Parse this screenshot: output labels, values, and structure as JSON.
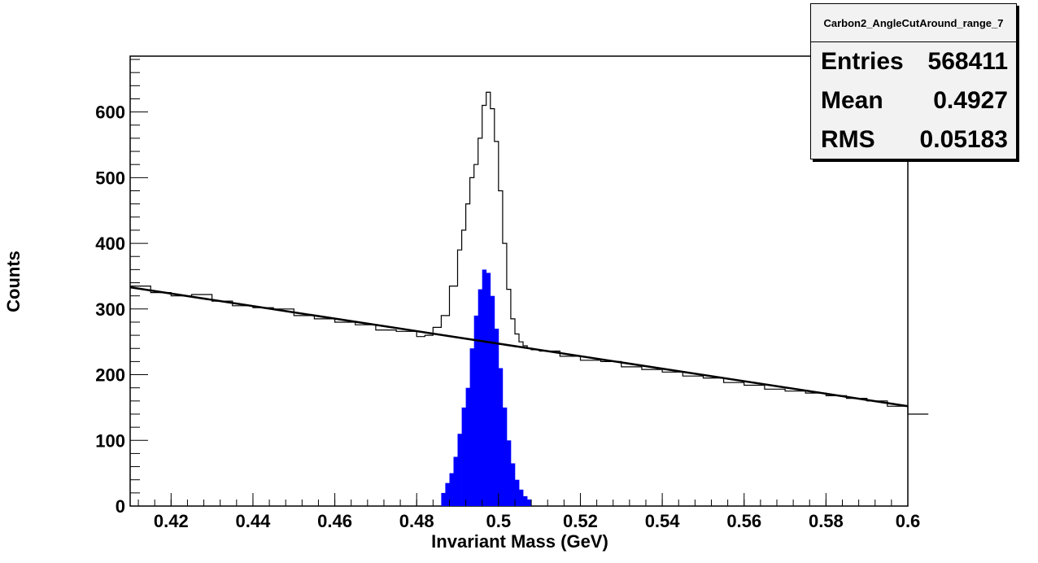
{
  "chart_data": {
    "type": "line",
    "xlabel": "Invariant Mass (GeV)",
    "ylabel": "Counts",
    "xlim": [
      0.41,
      0.6
    ],
    "ylim": [
      0,
      685
    ],
    "x_ticks": [
      "0.42",
      "0.44",
      "0.46",
      "0.48",
      "0.5",
      "0.52",
      "0.54",
      "0.56",
      "0.58",
      "0.6"
    ],
    "y_ticks": [
      "0",
      "100",
      "200",
      "300",
      "400",
      "500",
      "600"
    ],
    "grid": false,
    "legend": "none",
    "series": [
      {
        "kind": "histogram",
        "color": "#000000",
        "x": [
          0.41,
          0.415,
          0.42,
          0.425,
          0.43,
          0.435,
          0.44,
          0.445,
          0.45,
          0.455,
          0.46,
          0.465,
          0.47,
          0.475,
          0.48,
          0.482,
          0.484,
          0.486,
          0.488,
          0.49,
          0.491,
          0.492,
          0.493,
          0.494,
          0.495,
          0.496,
          0.497,
          0.498,
          0.499,
          0.5,
          0.501,
          0.502,
          0.503,
          0.504,
          0.505,
          0.506,
          0.507,
          0.508,
          0.51,
          0.515,
          0.52,
          0.525,
          0.53,
          0.535,
          0.54,
          0.545,
          0.55,
          0.555,
          0.56,
          0.565,
          0.57,
          0.575,
          0.58,
          0.585,
          0.59,
          0.595,
          0.6
        ],
        "y": [
          335,
          325,
          320,
          322,
          312,
          305,
          302,
          300,
          290,
          285,
          280,
          276,
          268,
          266,
          258,
          260,
          272,
          290,
          335,
          390,
          420,
          460,
          500,
          520,
          560,
          610,
          630,
          605,
          555,
          480,
          400,
          330,
          285,
          262,
          250,
          244,
          240,
          238,
          236,
          228,
          222,
          220,
          212,
          208,
          204,
          198,
          195,
          188,
          184,
          178,
          175,
          172,
          168,
          164,
          160,
          152,
          140
        ]
      },
      {
        "kind": "fit-line",
        "color": "#000000",
        "x": [
          0.41,
          0.6
        ],
        "y": [
          333,
          152
        ]
      },
      {
        "kind": "filled-histogram",
        "color": "#0000ff",
        "x": [
          0.486,
          0.487,
          0.488,
          0.489,
          0.49,
          0.491,
          0.492,
          0.493,
          0.494,
          0.495,
          0.496,
          0.497,
          0.498,
          0.499,
          0.5,
          0.501,
          0.502,
          0.503,
          0.504,
          0.505,
          0.506,
          0.507
        ],
        "y": [
          20,
          35,
          50,
          75,
          110,
          150,
          180,
          240,
          290,
          330,
          360,
          355,
          320,
          270,
          210,
          150,
          100,
          65,
          40,
          25,
          15,
          10
        ]
      }
    ]
  },
  "stats": {
    "title": "Carbon2_AngleCutAround_range_7",
    "entries_label": "Entries",
    "entries_value": "568411",
    "mean_label": "Mean",
    "mean_value": "0.4927",
    "rms_label": "RMS",
    "rms_value": "0.05183"
  }
}
